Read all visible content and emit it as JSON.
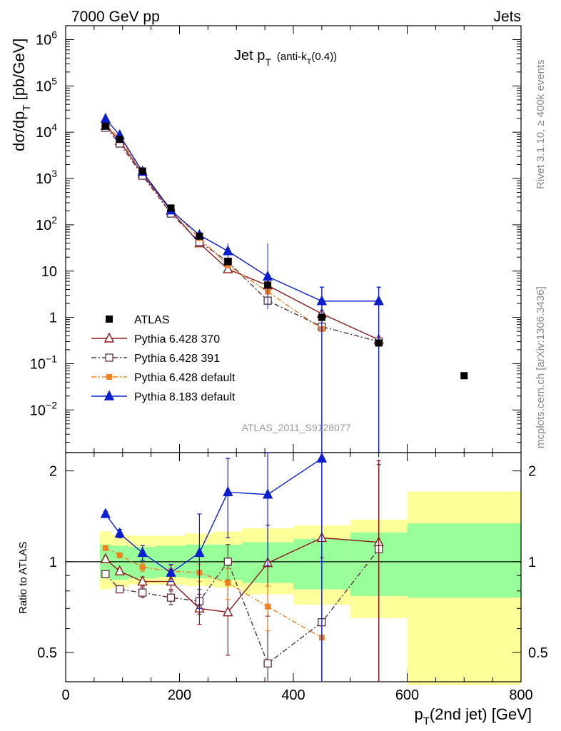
{
  "header": {
    "left": "7000 GeV pp",
    "right": "Jets"
  },
  "side": {
    "rivet": "Rivet 3.1.10, ≥ 400k events",
    "mcplots": "mcplots.cern.ch [arXiv:1306.3436]"
  },
  "analysis_id": "ATLAS_2011_S9128077",
  "colors": {
    "atlas": "#000000",
    "py370": "#8b1a1a",
    "py391": "#5a3040",
    "pydef": "#f08020",
    "py8": "#0a1ed0",
    "band_yellow": "#ffff99",
    "band_green": "#99ff99"
  },
  "chart_data": {
    "type": "line",
    "title_main": "Jet p",
    "title_sub": "T",
    "title_tail": "(anti-k",
    "title_tail_sub": "T",
    "title_tail_end": "(0.4))",
    "ylabel_main": "dσ/dp",
    "ylabel_sub": "T",
    "ylabel_unit": "[pb/GeV]",
    "xlabel_main": "p",
    "xlabel_sub": "T",
    "xlabel_tail": "(2nd jet) [GeV]",
    "ratio_ylabel": "Ratio to ATLAS",
    "xlim": [
      0,
      800
    ],
    "ylim_log": [
      0.0012,
      2000000
    ],
    "ratio_ylim_log": [
      0.4,
      2.3
    ],
    "x_ticks": [
      0,
      200,
      400,
      600,
      800
    ],
    "x_tick_labels": [
      "0",
      "200",
      "400",
      "600",
      "800"
    ],
    "y_ticks": [
      {
        "v": 1000000,
        "base": "10",
        "exp": "6"
      },
      {
        "v": 100000,
        "base": "10",
        "exp": "5"
      },
      {
        "v": 10000,
        "base": "10",
        "exp": "4"
      },
      {
        "v": 1000,
        "base": "10",
        "exp": "3"
      },
      {
        "v": 100,
        "base": "10",
        "exp": "2"
      },
      {
        "v": 10,
        "base": "10",
        "exp": ""
      },
      {
        "v": 1,
        "base": "1",
        "exp": ""
      },
      {
        "v": 0.1,
        "base": "10",
        "exp": "−1"
      },
      {
        "v": 0.01,
        "base": "10",
        "exp": "−2"
      }
    ],
    "ratio_ticks": [
      {
        "v": 0.5,
        "label": "0.5"
      },
      {
        "v": 1,
        "label": "1"
      },
      {
        "v": 2,
        "label": "2"
      }
    ],
    "atlas": {
      "name": "ATLAS",
      "x": [
        70,
        95,
        135,
        185,
        235,
        285,
        355,
        450,
        550,
        700
      ],
      "y": [
        13500,
        7000,
        1450,
        230,
        57,
        16,
        5.0,
        1.0,
        0.28,
        0.055
      ]
    },
    "bands": [
      {
        "lo": 60,
        "hi": 80,
        "g": [
          0.88,
          1.14
        ],
        "y": [
          0.81,
          1.26
        ]
      },
      {
        "lo": 80,
        "hi": 110,
        "g": [
          0.87,
          1.13
        ],
        "y": [
          0.82,
          1.23
        ]
      },
      {
        "lo": 110,
        "hi": 160,
        "g": [
          0.88,
          1.12
        ],
        "y": [
          0.84,
          1.22
        ]
      },
      {
        "lo": 160,
        "hi": 210,
        "g": [
          0.89,
          1.13
        ],
        "y": [
          0.84,
          1.22
        ]
      },
      {
        "lo": 210,
        "hi": 260,
        "g": [
          0.88,
          1.14
        ],
        "y": [
          0.83,
          1.24
        ]
      },
      {
        "lo": 260,
        "hi": 310,
        "g": [
          0.87,
          1.14
        ],
        "y": [
          0.82,
          1.26
        ]
      },
      {
        "lo": 310,
        "hi": 400,
        "g": [
          0.85,
          1.16
        ],
        "y": [
          0.78,
          1.29
        ]
      },
      {
        "lo": 400,
        "hi": 500,
        "g": [
          0.81,
          1.19
        ],
        "y": [
          0.72,
          1.32
        ]
      },
      {
        "lo": 500,
        "hi": 600,
        "g": [
          0.77,
          1.25
        ],
        "y": [
          0.65,
          1.38
        ]
      },
      {
        "lo": 600,
        "hi": 800,
        "g": [
          0.76,
          1.34
        ],
        "y": [
          0.39,
          1.71
        ]
      }
    ],
    "series": [
      {
        "name": "Pythia 6.428 370",
        "color_key": "py370",
        "marker": "tri-open",
        "dash": "",
        "x": [
          70,
          95,
          135,
          185,
          235,
          285,
          355,
          450,
          550
        ],
        "y": [
          13800,
          6500,
          1250,
          200,
          40,
          11,
          4.9,
          1.2,
          0.33
        ],
        "ratio": [
          1.02,
          0.93,
          0.86,
          0.86,
          0.7,
          0.68,
          0.99,
          1.2,
          1.16
        ],
        "ratio_err": [
          0.02,
          0.02,
          0.03,
          0.05,
          0.08,
          0.19,
          0.33,
          0.0,
          1.0
        ]
      },
      {
        "name": "Pythia 6.428 391",
        "color_key": "py391",
        "marker": "sq-open",
        "dash": "7,3,2,3",
        "x": [
          70,
          95,
          135,
          185,
          235,
          285,
          355,
          450,
          550
        ],
        "y": [
          12500,
          5700,
          1150,
          175,
          43,
          16,
          2.3,
          0.63,
          0.3
        ],
        "ratio": [
          0.91,
          0.81,
          0.79,
          0.76,
          0.74,
          1.0,
          0.46,
          0.63,
          1.1
        ],
        "ratio_err": [
          0.02,
          0.02,
          0.03,
          0.04,
          0.07,
          0.14,
          0.25,
          0.4,
          1.0
        ]
      },
      {
        "name": "Pythia 6.428 default",
        "color_key": "pydef",
        "marker": "sq-filled",
        "dash": "7,3,2,3",
        "x": [
          70,
          95,
          135,
          185,
          235,
          285,
          355,
          450
        ],
        "y": [
          15000,
          7300,
          1400,
          215,
          52,
          13.5,
          3.6,
          0.56
        ],
        "ratio": [
          1.11,
          1.05,
          0.96,
          0.93,
          0.92,
          0.85,
          0.71,
          0.56
        ],
        "ratio_err": [
          0.02,
          0.02,
          0.03,
          0.04,
          0.06,
          0.1,
          0.12,
          0.0
        ]
      },
      {
        "name": "Pythia 8.183 default",
        "color_key": "py8",
        "marker": "tri-filled",
        "dash": "",
        "x": [
          70,
          95,
          135,
          185,
          235,
          285,
          355,
          450,
          550
        ],
        "y": [
          19500,
          8600,
          1400,
          205,
          60,
          27,
          7.6,
          2.25,
          2.25
        ],
        "ratio": [
          1.44,
          1.24,
          1.07,
          0.92,
          1.07,
          1.7,
          1.67,
          2.2,
          0.0
        ],
        "ratio_err": [
          0.03,
          0.04,
          0.06,
          0.06,
          0.37,
          0.5,
          0.7,
          1.2,
          0.0
        ]
      }
    ],
    "legend": [
      "ATLAS",
      "Pythia 6.428 370",
      "Pythia 6.428 391",
      "Pythia 6.428 default",
      "Pythia 8.183 default"
    ]
  }
}
